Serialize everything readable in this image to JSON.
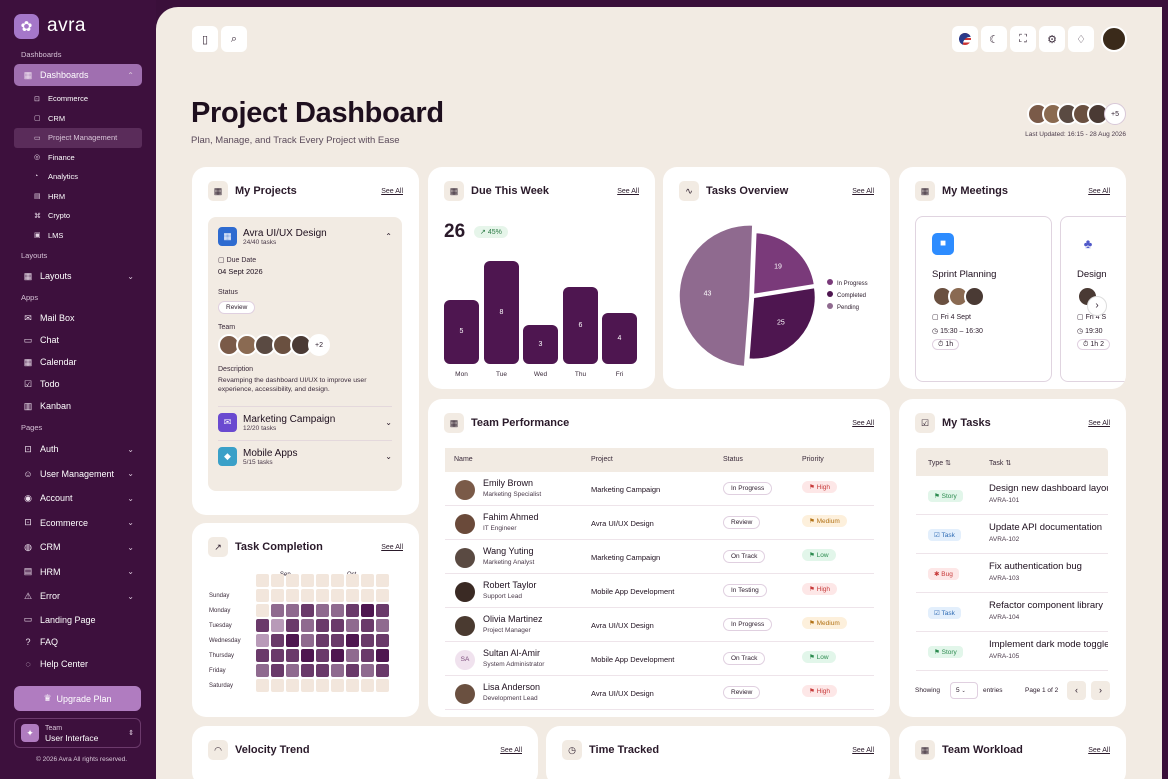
{
  "brand": {
    "name": "avra"
  },
  "sidebar": {
    "sec_dash": "Dashboards",
    "dashboards": "Dashboards",
    "subs": [
      "Ecommerce",
      "CRM",
      "Project Management",
      "Finance",
      "Analytics",
      "HRM",
      "Crypto",
      "LMS"
    ],
    "sec_layouts": "Layouts",
    "layouts": "Layouts",
    "sec_apps": "Apps",
    "apps": [
      "Mail Box",
      "Chat",
      "Calendar",
      "Todo",
      "Kanban"
    ],
    "sec_pages": "Pages",
    "pages": [
      "Auth",
      "User Management",
      "Account",
      "Ecommerce",
      "CRM",
      "HRM",
      "Error",
      "Landing Page",
      "FAQ",
      "Help Center"
    ],
    "upgrade": "Upgrade Plan",
    "team_label": "Team",
    "team_value": "User Interface",
    "copyright": "© 2026 Avra All rights reserved."
  },
  "header": {
    "title": "Project Dashboard",
    "subtitle": "Plan, Manage, and Track Every Project with Ease",
    "more": "+5",
    "last_updated": "Last Updated: 16:15 - 28 Aug 2026"
  },
  "see_all": "See All",
  "projects": {
    "title": "My Projects",
    "expanded": {
      "name": "Avra UI/UX Design",
      "tasks": "24/40 tasks",
      "due_label": "Due Date",
      "due": "04 Sept 2026",
      "status_label": "Status",
      "status": "Review",
      "team_label": "Team",
      "team_more": "+2",
      "desc_label": "Description",
      "desc": "Revamping the dashboard UI/UX to improve user experience, accessibility, and design."
    },
    "others": [
      {
        "name": "Marketing Campaign",
        "tasks": "12/20 tasks"
      },
      {
        "name": "Mobile Apps",
        "tasks": "5/15 tasks"
      }
    ]
  },
  "due": {
    "title": "Due This Week",
    "count": "26",
    "change": "45%"
  },
  "chart_data": [
    {
      "type": "bar",
      "title": "Due This Week",
      "categories": [
        "Mon",
        "Tue",
        "Wed",
        "Thu",
        "Fri"
      ],
      "values": [
        5,
        8,
        3,
        6,
        4
      ],
      "ylim": [
        0,
        8
      ]
    },
    {
      "type": "pie",
      "title": "Tasks Overview",
      "categories": [
        "In Progress",
        "Completed",
        "Pending"
      ],
      "values": [
        19,
        25,
        43
      ],
      "colors": [
        "#7a3a7a",
        "#4e1650",
        "#8f6a8f"
      ],
      "legend": "right"
    }
  ],
  "overview": {
    "title": "Tasks Overview",
    "legend": [
      "In Progress",
      "Completed",
      "Pending"
    ]
  },
  "meetings": {
    "title": "My Meetings",
    "items": [
      {
        "title": "Sprint Planning",
        "date": "Fri 4 Sept",
        "time": "15:30 – 16:30",
        "dur": "1h"
      },
      {
        "title": "Design",
        "date": "Fri 4 S",
        "time": "19:30",
        "dur": "1h 2"
      }
    ]
  },
  "performance": {
    "title": "Team Performance",
    "headers": [
      "Name",
      "Project",
      "Status",
      "Priority"
    ],
    "rows": [
      {
        "name": "Emily Brown",
        "role": "Marketing Specialist",
        "project": "Marketing Campaign",
        "status": "In Progress",
        "priority": "High"
      },
      {
        "name": "Fahim Ahmed",
        "role": "IT Engineer",
        "project": "Avra UI/UX Design",
        "status": "Review",
        "priority": "Medium"
      },
      {
        "name": "Wang Yuting",
        "role": "Marketing Analyst",
        "project": "Marketing Campaign",
        "status": "On Track",
        "priority": "Low"
      },
      {
        "name": "Robert Taylor",
        "role": "Support Lead",
        "project": "Mobile App Development",
        "status": "In Testing",
        "priority": "High"
      },
      {
        "name": "Olivia Martinez",
        "role": "Project Manager",
        "project": "Avra UI/UX Design",
        "status": "In Progress",
        "priority": "Medium"
      },
      {
        "name": "Sultan Al-Amir",
        "role": "System Administrator",
        "project": "Mobile App Development",
        "status": "On Track",
        "priority": "Low",
        "initials": "SA"
      },
      {
        "name": "Lisa Anderson",
        "role": "Development Lead",
        "project": "Avra UI/UX Design",
        "status": "Review",
        "priority": "High"
      }
    ]
  },
  "tasks": {
    "title": "My Tasks",
    "headers": [
      "Type",
      "Task"
    ],
    "rows": [
      {
        "type": "Story",
        "task": "Design new dashboard layout",
        "id": "AVRA-101"
      },
      {
        "type": "Task",
        "task": "Update API documentation",
        "id": "AVRA-102"
      },
      {
        "type": "Bug",
        "task": "Fix authentication bug",
        "id": "AVRA-103"
      },
      {
        "type": "Task",
        "task": "Refactor component library",
        "id": "AVRA-104"
      },
      {
        "type": "Story",
        "task": "Implement dark mode toggle",
        "id": "AVRA-105"
      }
    ],
    "showing": "Showing",
    "per_page": "5",
    "entries": "entries",
    "page": "Page 1 of 2"
  },
  "completion": {
    "title": "Task Completion",
    "months": [
      "Sep",
      "Oct"
    ],
    "days": [
      "Sunday",
      "Monday",
      "Tuesday",
      "Wednesday",
      "Thursday",
      "Friday",
      "Saturday"
    ]
  },
  "bottom": {
    "velocity": "Velocity Trend",
    "time": "Time Tracked",
    "workload": "Team Workload"
  }
}
